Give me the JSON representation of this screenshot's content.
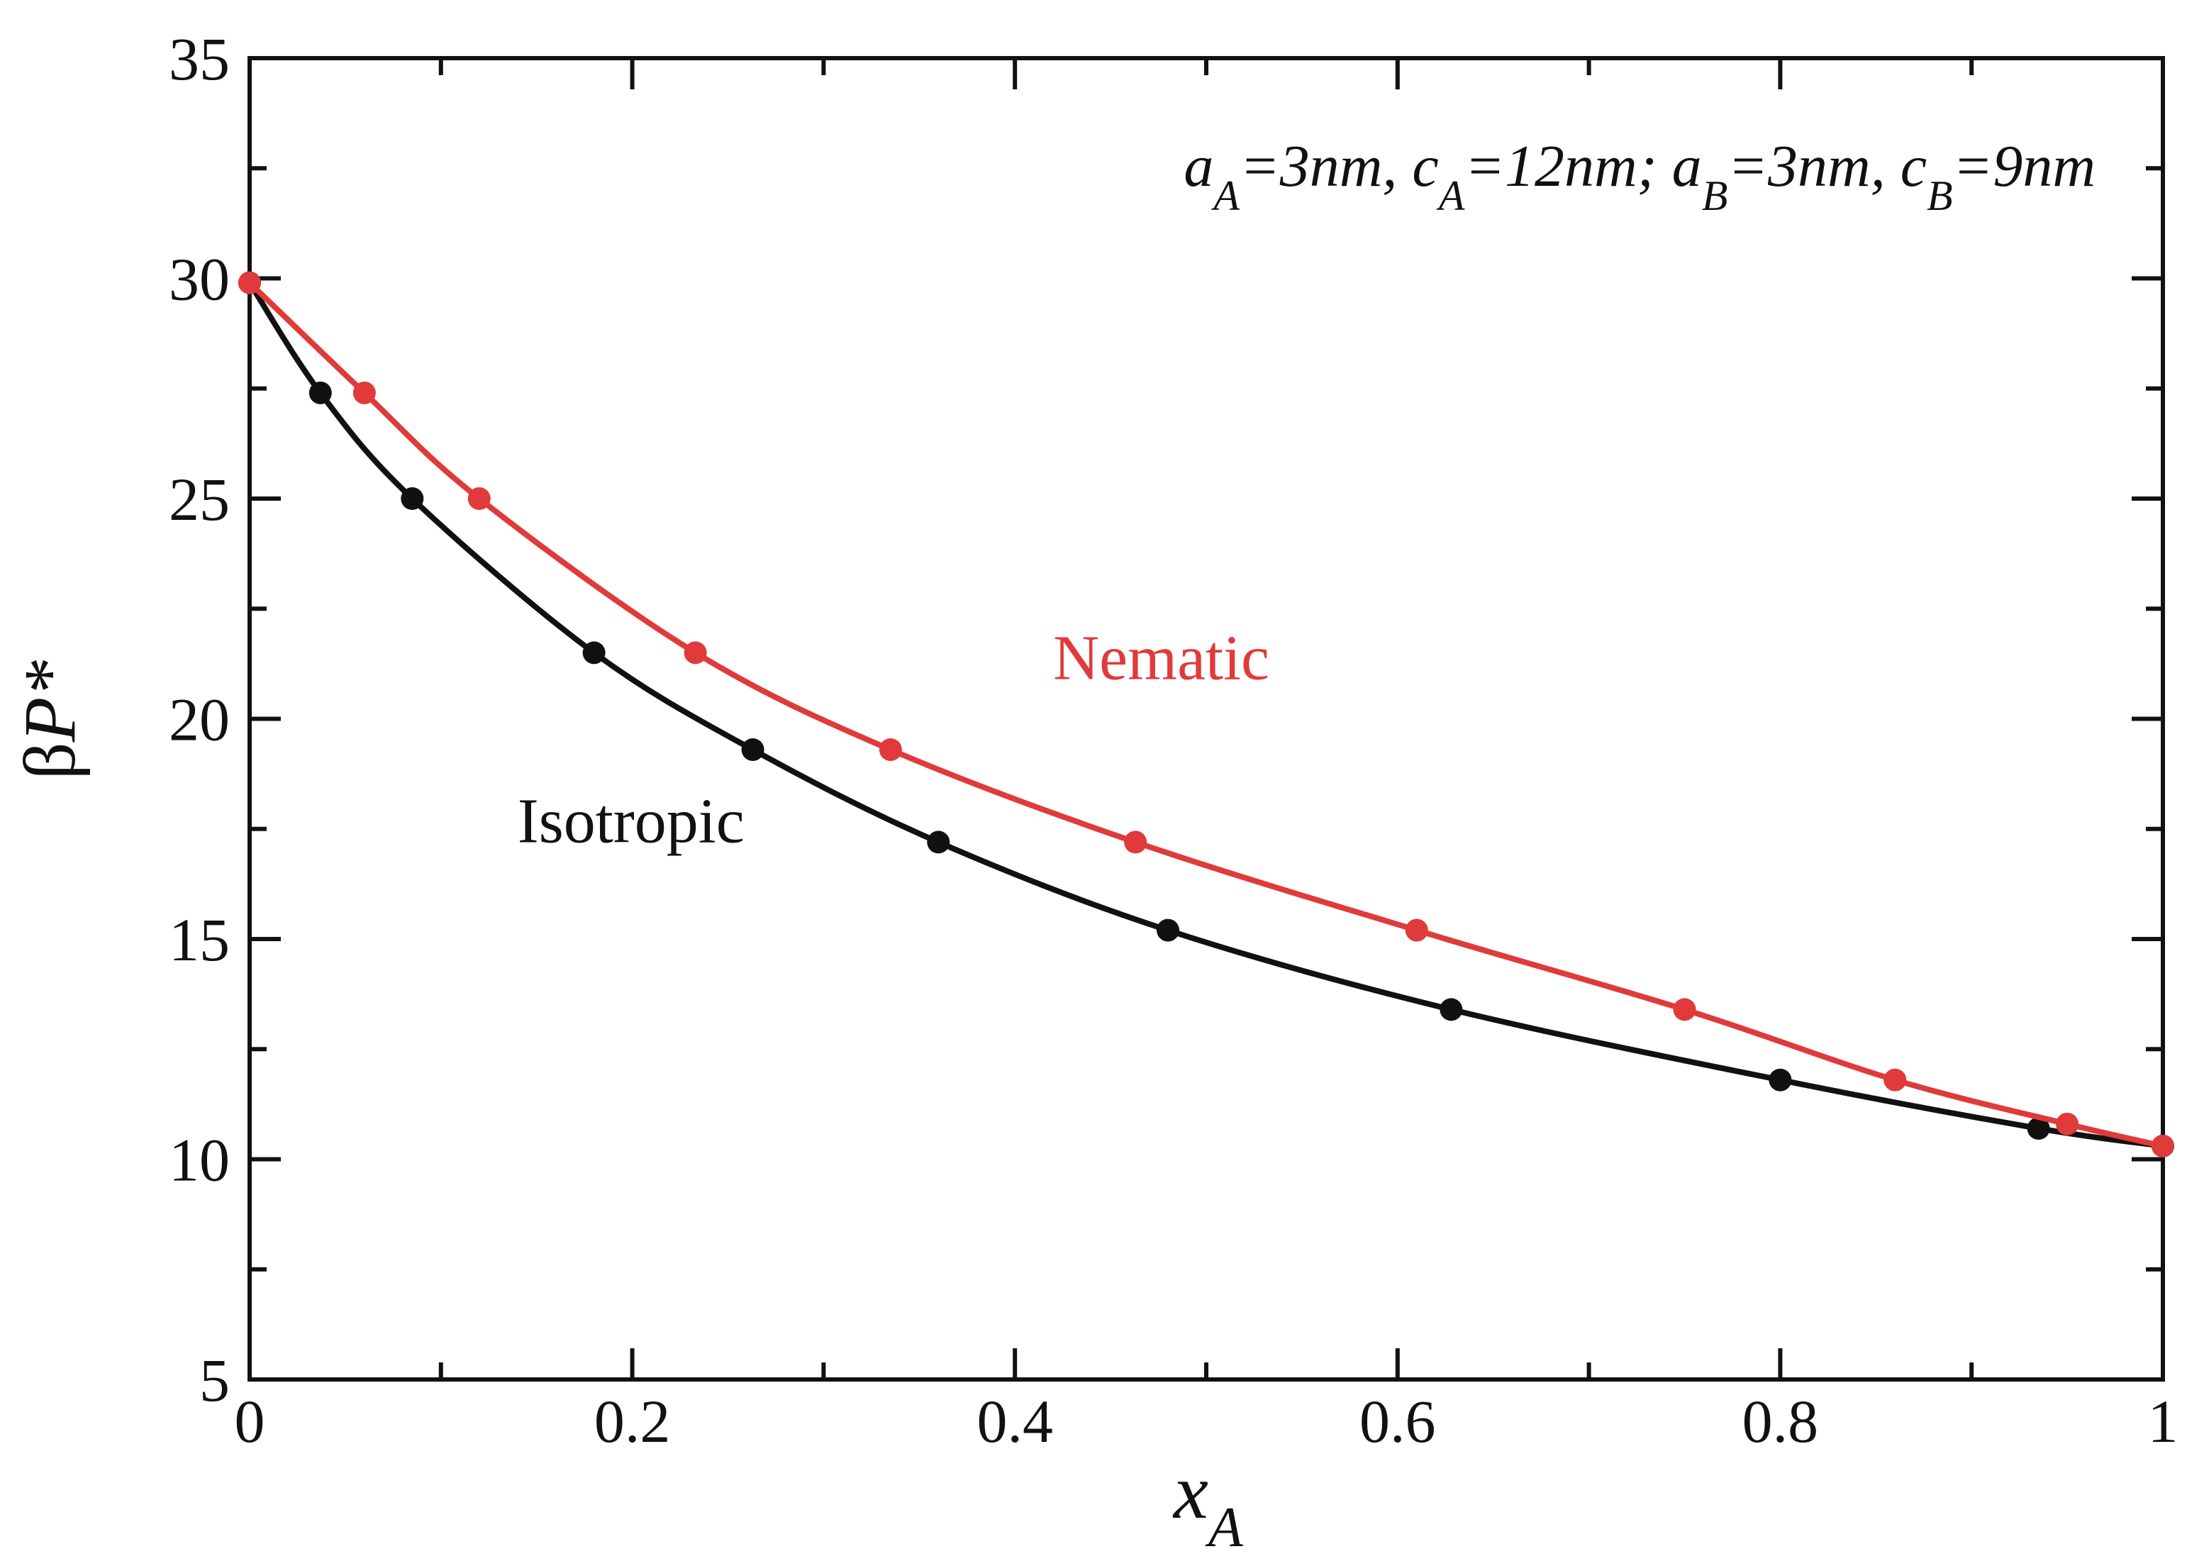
{
  "chart_data": {
    "type": "line",
    "title": "",
    "xlabel": "x_A",
    "xlabel_main": "x",
    "xlabel_sub": "A",
    "ylabel": "βP*",
    "ylabel_beta": "β",
    "ylabel_var": "P*",
    "xlim": [
      0,
      1
    ],
    "ylim": [
      5,
      35
    ],
    "xticks": [
      0,
      0.2,
      0.4,
      0.6,
      0.8,
      1
    ],
    "xtick_labels": [
      "0",
      "0.2",
      "0.4",
      "0.6",
      "0.8",
      "1"
    ],
    "xminor": [
      0.1,
      0.3,
      0.5,
      0.7,
      0.9
    ],
    "yticks": [
      5,
      10,
      15,
      20,
      25,
      30,
      35
    ],
    "ytick_labels": [
      "5",
      "10",
      "15",
      "20",
      "25",
      "30",
      "35"
    ],
    "yminor": [
      7.5,
      12.5,
      17.5,
      22.5,
      27.5,
      32.5
    ],
    "grid": false,
    "annotation": {
      "text": "a_A=3nm, c_A=12nm; a_B=3nm, c_B=9nm",
      "parts": [
        {
          "t": "a",
          "sub": false
        },
        {
          "t": "A",
          "sub": true
        },
        {
          "t": "=3nm, c",
          "sub": false
        },
        {
          "t": "A",
          "sub": true
        },
        {
          "t": "=12nm; a",
          "sub": false
        },
        {
          "t": "B",
          "sub": true
        },
        {
          "t": "=3nm, c",
          "sub": false
        },
        {
          "t": "B",
          "sub": true
        },
        {
          "t": "=9nm",
          "sub": false
        }
      ]
    },
    "series": [
      {
        "name": "Nematic",
        "color": "#e03a3a",
        "label_pos": [
          0.42,
          20.9
        ],
        "x": [
          0,
          0.06,
          0.12,
          0.233,
          0.335,
          0.463,
          0.61,
          0.75,
          0.86,
          0.95,
          1
        ],
        "y": [
          29.9,
          27.4,
          25.0,
          21.5,
          19.3,
          17.2,
          15.2,
          13.4,
          11.8,
          10.8,
          10.3
        ]
      },
      {
        "name": "Isotropic",
        "color": "#111111",
        "label_pos": [
          0.14,
          17.2
        ],
        "x": [
          0,
          0.037,
          0.085,
          0.18,
          0.263,
          0.36,
          0.48,
          0.628,
          0.8,
          0.935,
          1
        ],
        "y": [
          29.9,
          27.4,
          25.0,
          21.5,
          19.3,
          17.2,
          15.2,
          13.4,
          11.8,
          10.7,
          10.3
        ]
      }
    ]
  }
}
